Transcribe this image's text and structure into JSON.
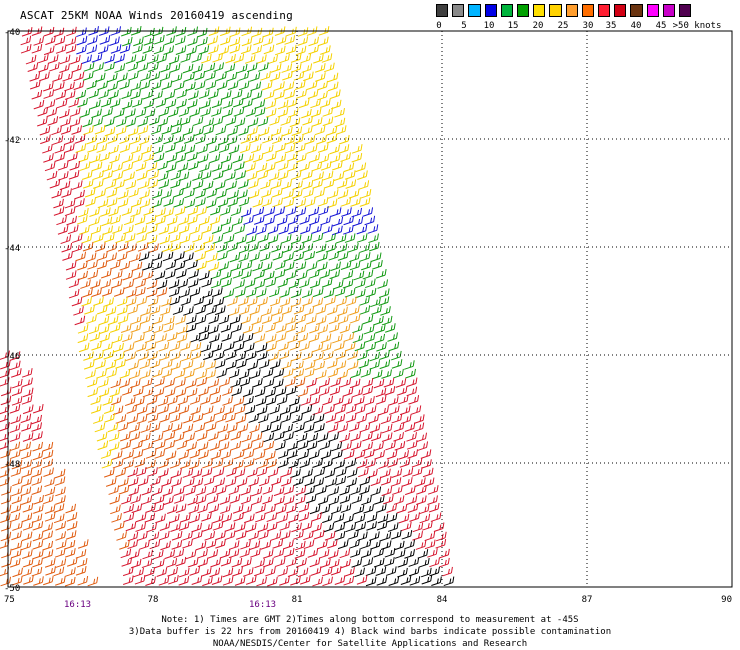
{
  "title": "ASCAT 25KM NOAA Winds 20160419 ascending",
  "legend": {
    "colors": [
      "#404040",
      "#8a8a8a",
      "#00b4ff",
      "#0000e6",
      "#00b43c",
      "#00a000",
      "#ffe000",
      "#ffd200",
      "#ff9e2e",
      "#ff6e00",
      "#ff1e32",
      "#d20014",
      "#6b3410",
      "#ff00ff",
      "#c800c8",
      "#500050"
    ],
    "labels": [
      "0",
      "5",
      "10",
      "15",
      "20",
      "25",
      "30",
      "35",
      "40",
      "45",
      ">50 knots"
    ]
  },
  "axes": {
    "lon_labels": [
      "75",
      "78",
      "81",
      "84",
      "87",
      "90"
    ],
    "lat_labels": [
      "-40",
      "-42",
      "-44",
      "-46",
      "-48",
      "-50"
    ]
  },
  "times": [
    "16:13",
    "16:13"
  ],
  "notes": {
    "line1": "Note: 1) Times are GMT 2)Times along bottom correspond to measurement at -45S",
    "line2": "3)Data buffer is 22 hrs from 20160419 4) Black wind barbs indicate possible contamination",
    "line3": "NOAA/NESDIS/Center for Satellite Applications and Research"
  }
}
